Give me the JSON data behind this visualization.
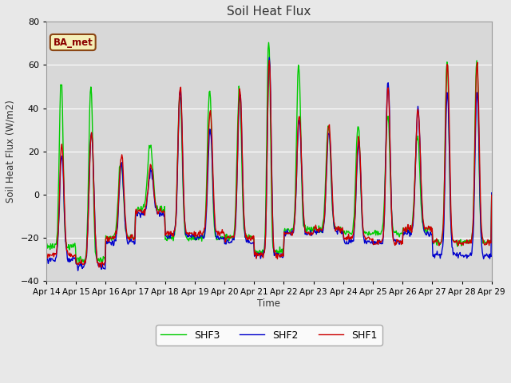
{
  "title": "Soil Heat Flux",
  "ylabel": "Soil Heat Flux (W/m2)",
  "xlabel": "Time",
  "ylim": [
    -40,
    80
  ],
  "yticks": [
    -40,
    -20,
    0,
    20,
    40,
    60,
    80
  ],
  "n_days": 15,
  "colors": {
    "SHF1": "#cc0000",
    "SHF2": "#0000cc",
    "SHF3": "#00cc00"
  },
  "legend_label": "BA_met",
  "bg_color": "#e8e8e8",
  "plot_bg": "#d8d8d8",
  "grid_color": "#ffffff",
  "linewidth": 1.0,
  "x_labels": [
    "Apr 14",
    "Apr 15",
    "Apr 16",
    "Apr 17",
    "Apr 18",
    "Apr 19",
    "Apr 20",
    "Apr 21",
    "Apr 22",
    "Apr 23",
    "Apr 24",
    "Apr 25",
    "Apr 26",
    "Apr 27",
    "Apr 28",
    "Apr 29"
  ]
}
